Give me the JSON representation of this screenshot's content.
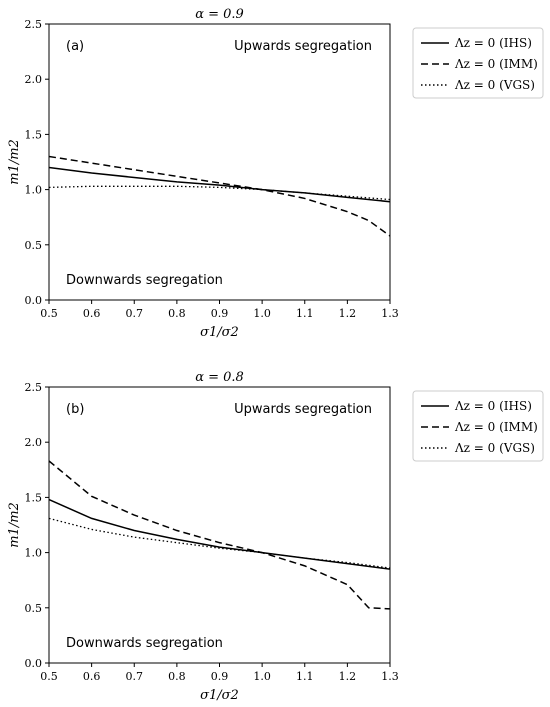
{
  "chart_data": [
    {
      "type": "line",
      "title": "α = 0.9",
      "panel_label": "(a)",
      "xlabel": "σ1/σ2",
      "ylabel": "m1/m2",
      "xlim": [
        0.5,
        1.3
      ],
      "ylim": [
        0.0,
        2.5
      ],
      "x_ticks": [
        "0.5",
        "0.6",
        "0.7",
        "0.8",
        "0.9",
        "1.0",
        "1.1",
        "1.2",
        "1.3"
      ],
      "y_ticks": [
        "0.0",
        "0.5",
        "1.0",
        "1.5",
        "2.0",
        "2.5"
      ],
      "annotations": {
        "upper": "Upwards segregation",
        "lower": "Downwards segregation"
      },
      "legend_position": "outside-right-top",
      "series": [
        {
          "name": "Λz = 0 (IHS)",
          "style": "solid",
          "x": [
            0.5,
            0.6,
            0.7,
            0.8,
            0.9,
            1.0,
            1.1,
            1.2,
            1.3
          ],
          "y": [
            1.2,
            1.15,
            1.11,
            1.07,
            1.04,
            1.0,
            0.97,
            0.93,
            0.89
          ]
        },
        {
          "name": "Λz = 0 (IMM)",
          "style": "dashed",
          "x": [
            0.5,
            0.6,
            0.7,
            0.8,
            0.9,
            1.0,
            1.1,
            1.2,
            1.25,
            1.3
          ],
          "y": [
            1.3,
            1.24,
            1.18,
            1.12,
            1.06,
            1.0,
            0.92,
            0.8,
            0.72,
            0.58
          ]
        },
        {
          "name": "Λz = 0 (VGS)",
          "style": "dotted",
          "x": [
            0.5,
            0.6,
            0.7,
            0.8,
            0.9,
            1.0,
            1.1,
            1.2,
            1.3
          ],
          "y": [
            1.02,
            1.03,
            1.03,
            1.03,
            1.02,
            1.0,
            0.97,
            0.94,
            0.91
          ]
        }
      ]
    },
    {
      "type": "line",
      "title": "α = 0.8",
      "panel_label": "(b)",
      "xlabel": "σ1/σ2",
      "ylabel": "m1/m2",
      "xlim": [
        0.5,
        1.3
      ],
      "ylim": [
        0.0,
        2.5
      ],
      "x_ticks": [
        "0.5",
        "0.6",
        "0.7",
        "0.8",
        "0.9",
        "1.0",
        "1.1",
        "1.2",
        "1.3"
      ],
      "y_ticks": [
        "0.0",
        "0.5",
        "1.0",
        "1.5",
        "2.0",
        "2.5"
      ],
      "annotations": {
        "upper": "Upwards segregation",
        "lower": "Downwards segregation"
      },
      "legend_position": "outside-right-top",
      "series": [
        {
          "name": "Λz = 0 (IHS)",
          "style": "solid",
          "x": [
            0.5,
            0.6,
            0.7,
            0.8,
            0.9,
            1.0,
            1.1,
            1.2,
            1.3
          ],
          "y": [
            1.48,
            1.31,
            1.2,
            1.12,
            1.05,
            1.0,
            0.95,
            0.9,
            0.85
          ]
        },
        {
          "name": "Λz = 0 (IMM)",
          "style": "dashed",
          "x": [
            0.5,
            0.6,
            0.7,
            0.8,
            0.9,
            1.0,
            1.1,
            1.2,
            1.25,
            1.3
          ],
          "y": [
            1.83,
            1.51,
            1.34,
            1.2,
            1.09,
            1.0,
            0.88,
            0.71,
            0.5,
            0.49
          ]
        },
        {
          "name": "Λz = 0 (VGS)",
          "style": "dotted",
          "x": [
            0.5,
            0.6,
            0.7,
            0.8,
            0.9,
            1.0,
            1.1,
            1.2,
            1.3
          ],
          "y": [
            1.31,
            1.21,
            1.14,
            1.09,
            1.04,
            1.0,
            0.95,
            0.91,
            0.86
          ]
        }
      ]
    }
  ]
}
